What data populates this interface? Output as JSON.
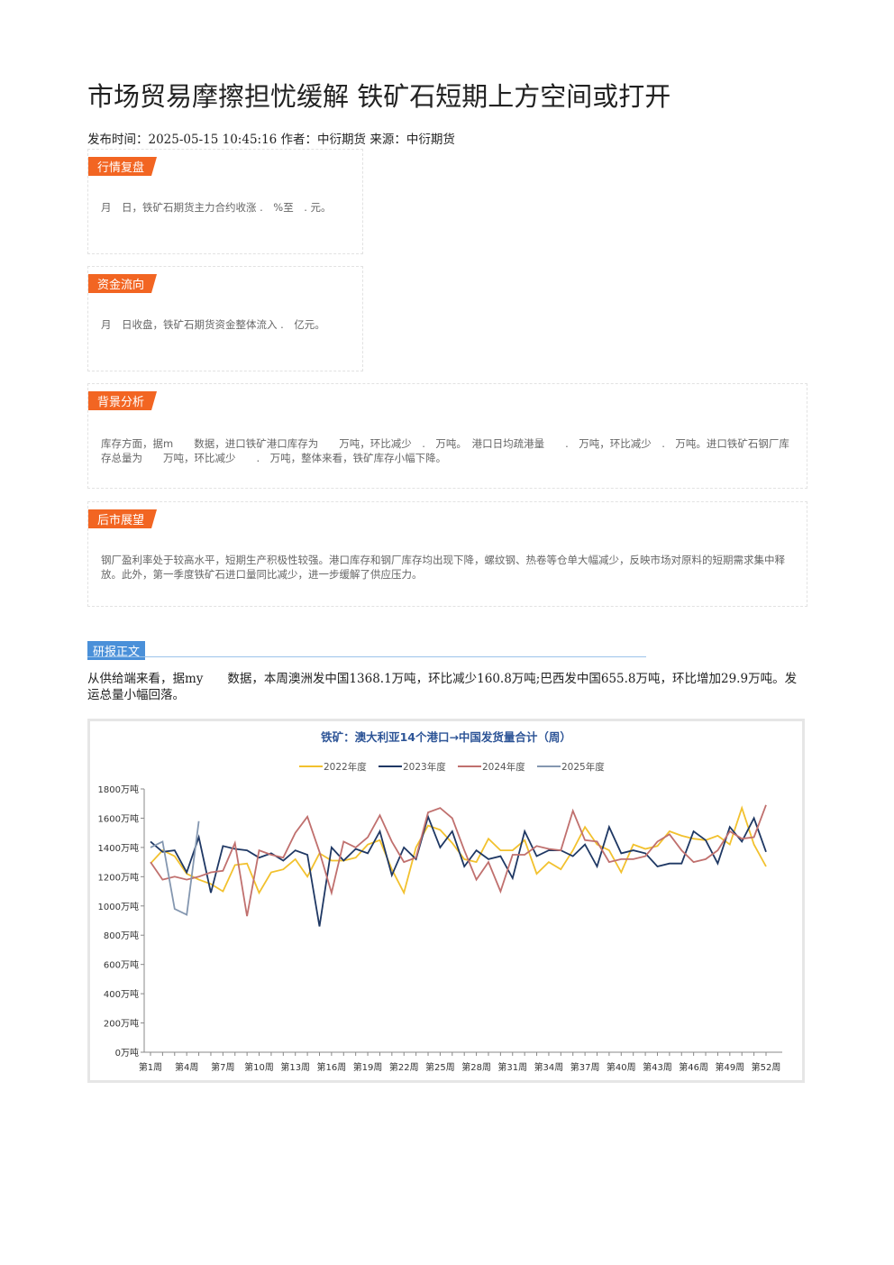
{
  "header": {
    "title": "市场贸易摩擦担忧缓解 铁矿石短期上方空间或打开",
    "meta": "发布时间：2025-05-15 10:45:16 作者：中衍期货 来源：中衍期货"
  },
  "sections": [
    {
      "tag": "行情复盘",
      "text": "月　日，铁矿石期货主力合约收涨 .　%至　. 元。"
    },
    {
      "tag": "资金流向",
      "text": "月　日收盘，铁矿石期货资金整体流入 .　亿元。"
    },
    {
      "tag": "背景分析",
      "text": "库存方面，据m　　数据，进口铁矿港口库存为　　万吨，环比减少　.　万吨。　港口日均疏港量　　.　万吨，环比减少　.　万吨。进口铁矿石钢厂库存总量为　　万吨，环比减少　　.　万吨，整体来看，铁矿库存小幅下降。"
    },
    {
      "tag": "后市展望",
      "text": "钢厂盈利率处于较高水平，短期生产积极性较强。港口库存和钢厂库存均出现下降，螺纹钢、热卷等仓单大幅减少，反映市场对原料的短期需求集中释放。此外，第一季度铁矿石进口量同比减少，进一步缓解了供应压力。"
    }
  ],
  "report": {
    "tag": "研报正文",
    "text": "从供给端来看，据my　　数据，本周澳洲发中国1368.1万吨，环比减少160.8万吨;巴西发中国655.8万吨，环比增加29.9万吨。发运总量小幅回落。"
  },
  "chart_data": {
    "type": "line",
    "title": "铁矿：澳大利亚14个港口→中国发货量合计（周）",
    "categories": [
      "第1周",
      null,
      null,
      "第4周",
      null,
      null,
      "第7周",
      null,
      null,
      "第10周",
      null,
      null,
      "第13周",
      null,
      null,
      "第16周",
      null,
      null,
      "第19周",
      null,
      null,
      "第22周",
      null,
      null,
      "第25周",
      null,
      null,
      "第28周",
      null,
      null,
      "第31周",
      null,
      null,
      "第34周",
      null,
      null,
      "第37周",
      null,
      null,
      "第40周",
      null,
      null,
      "第43周",
      null,
      null,
      "第46周",
      null,
      null,
      "第49周",
      null,
      null,
      "第52周"
    ],
    "ylim": [
      0,
      1800
    ],
    "yticks": [
      {
        "value": 0,
        "label": "0万吨"
      },
      {
        "value": 200,
        "label": "200万吨"
      },
      {
        "value": 400,
        "label": "400万吨"
      },
      {
        "value": 600,
        "label": "600万吨"
      },
      {
        "value": 800,
        "label": "800万吨"
      },
      {
        "value": 1000,
        "label": "1000万吨"
      },
      {
        "value": 1200,
        "label": "1200万吨"
      },
      {
        "value": 1400,
        "label": "1400万吨"
      },
      {
        "value": 1600,
        "label": "1600万吨"
      },
      {
        "value": 1800,
        "label": "1800万吨"
      }
    ],
    "series": [
      {
        "name": "2022年度",
        "color": "#f2c12e",
        "values": [
          1290,
          1380,
          1340,
          1220,
          1180,
          1150,
          1100,
          1280,
          1290,
          1090,
          1230,
          1250,
          1320,
          1200,
          1360,
          1310,
          1310,
          1330,
          1420,
          1450,
          1250,
          1090,
          1400,
          1550,
          1520,
          1430,
          1320,
          1300,
          1460,
          1380,
          1380,
          1450,
          1220,
          1300,
          1250,
          1380,
          1540,
          1420,
          1380,
          1230,
          1420,
          1390,
          1410,
          1510,
          1480,
          1460,
          1450,
          1480,
          1420,
          1670,
          1420,
          1270
        ]
      },
      {
        "name": "2023年度",
        "color": "#1f3864",
        "values": [
          1440,
          1370,
          1380,
          1230,
          1470,
          1090,
          1410,
          1390,
          1380,
          1330,
          1360,
          1310,
          1380,
          1350,
          860,
          1400,
          1310,
          1390,
          1360,
          1510,
          1210,
          1400,
          1320,
          1610,
          1400,
          1510,
          1270,
          1380,
          1320,
          1340,
          1190,
          1510,
          1340,
          1380,
          1380,
          1340,
          1420,
          1270,
          1540,
          1360,
          1380,
          1360,
          1270,
          1290,
          1290,
          1510,
          1450,
          1290,
          1540,
          1440,
          1600,
          1370
        ]
      },
      {
        "name": "2024年度",
        "color": "#c0706e",
        "values": [
          1300,
          1180,
          1200,
          1180,
          1200,
          1230,
          1240,
          1430,
          930,
          1380,
          1350,
          1330,
          1500,
          1610,
          1370,
          1090,
          1440,
          1400,
          1470,
          1620,
          1440,
          1300,
          1330,
          1640,
          1670,
          1600,
          1380,
          1180,
          1300,
          1100,
          1350,
          1350,
          1410,
          1390,
          1380,
          1650,
          1450,
          1440,
          1300,
          1320,
          1320,
          1340,
          1440,
          1490,
          1380,
          1300,
          1320,
          1380,
          1510,
          1460,
          1470,
          1690
        ]
      },
      {
        "name": "2025年度",
        "color": "#8497b0",
        "values": [
          1400,
          1440,
          980,
          940,
          1580,
          null,
          null,
          null,
          null,
          null,
          null,
          null,
          null,
          null,
          null,
          null,
          null,
          null,
          null,
          null,
          null,
          null,
          null,
          null,
          null,
          null,
          null,
          null,
          null,
          null,
          null,
          null,
          null,
          null,
          null,
          null,
          null,
          null,
          null,
          null,
          null,
          null,
          null,
          null,
          null,
          null,
          null,
          null,
          null,
          null,
          null,
          null
        ]
      }
    ]
  }
}
